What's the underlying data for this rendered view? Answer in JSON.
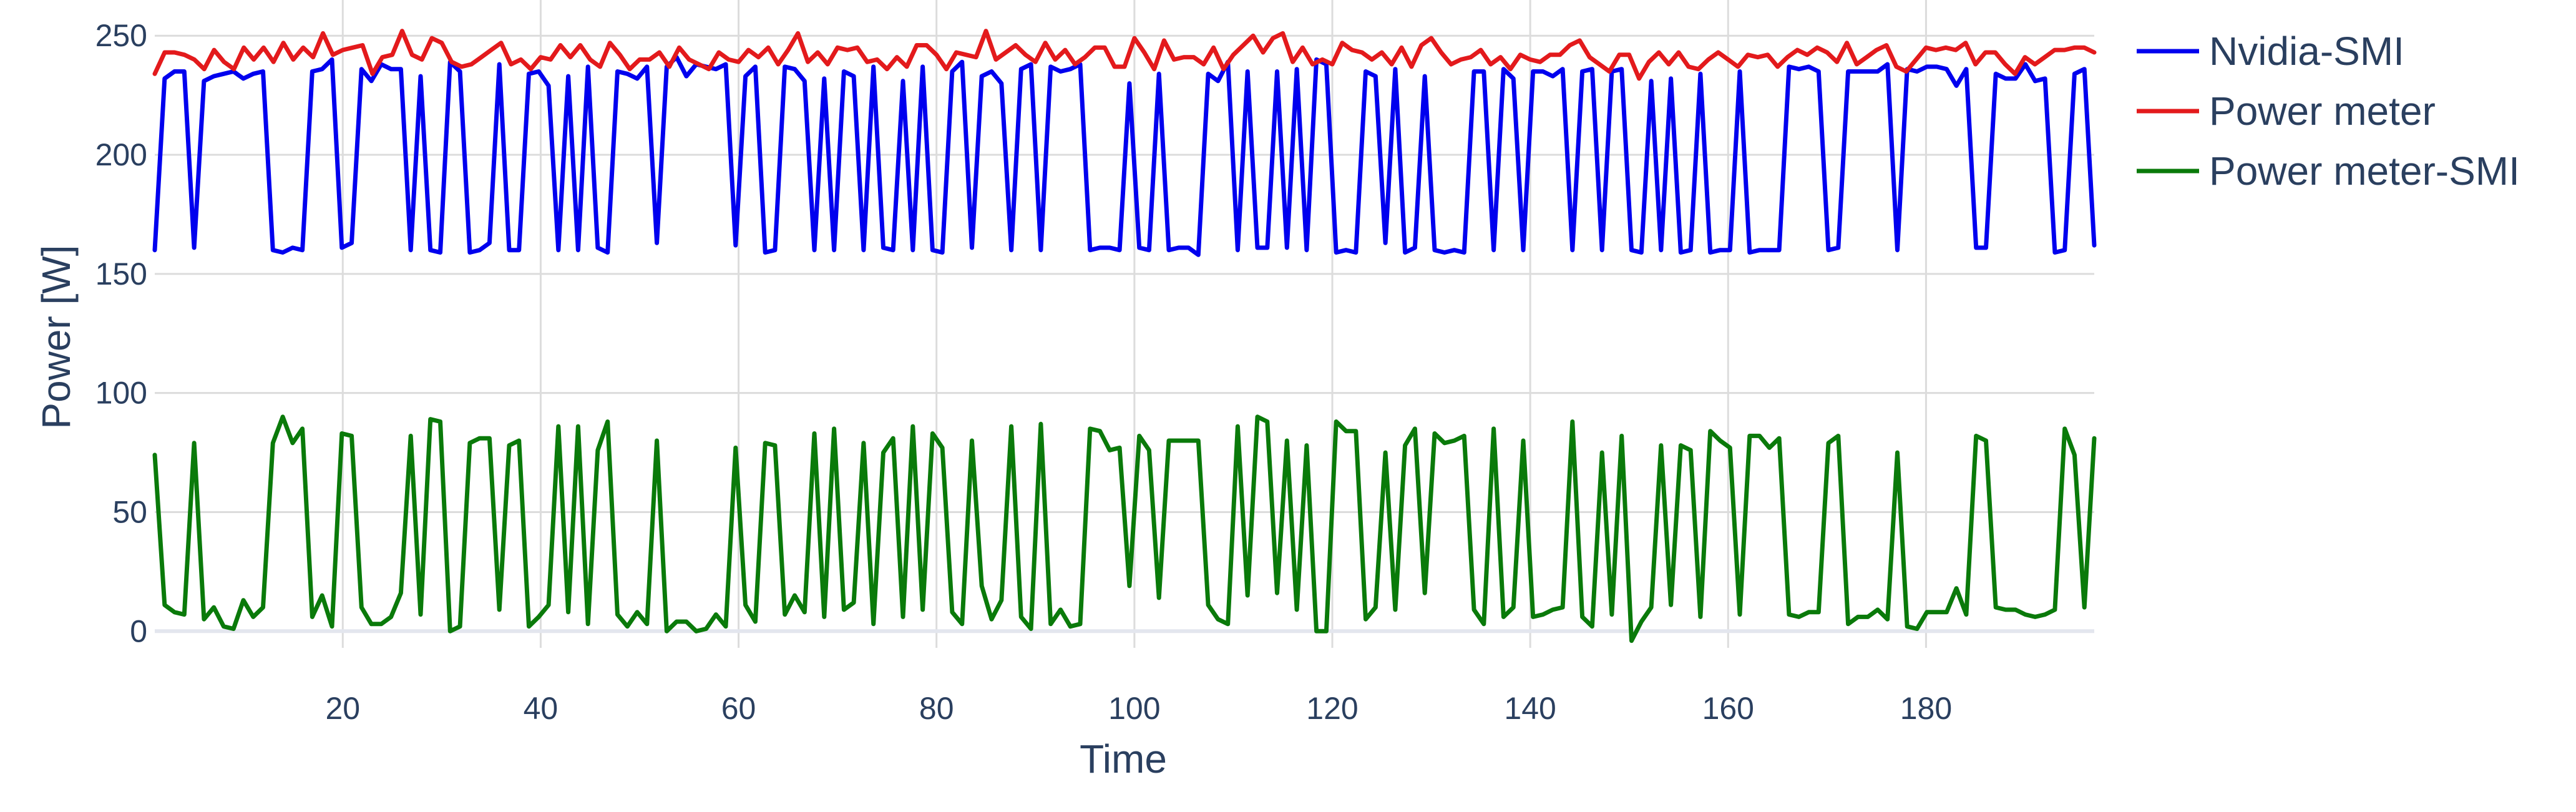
{
  "chart_data": {
    "type": "line",
    "title": "",
    "xlabel": "Time",
    "ylabel": "Power [W]",
    "xlim": [
      1,
      197
    ],
    "ylim": [
      -7,
      265
    ],
    "xticks": [
      20,
      40,
      60,
      80,
      100,
      120,
      140,
      160,
      180
    ],
    "yticks": [
      0,
      50,
      100,
      150,
      200,
      250
    ],
    "grid": true,
    "legend_position": "top-right outside",
    "series": [
      {
        "name": "Nvidia-SMI",
        "color": "#0000ee",
        "values": [
          160,
          232,
          235,
          235,
          161,
          231,
          233,
          234,
          235,
          232,
          234,
          235,
          160,
          159,
          161,
          160,
          235,
          236,
          240,
          161,
          163,
          236,
          231,
          238,
          236,
          236,
          160,
          233,
          160,
          159,
          239,
          235,
          159,
          160,
          163,
          238,
          160,
          160,
          234,
          235,
          229,
          160,
          233,
          160,
          237,
          161,
          159,
          235,
          234,
          232,
          237,
          163,
          237,
          241,
          233,
          238,
          237,
          236,
          238,
          162,
          233,
          237,
          159,
          160,
          237,
          236,
          231,
          160,
          232,
          160,
          235,
          233,
          160,
          237,
          161,
          160,
          231,
          160,
          237,
          160,
          159,
          235,
          239,
          161,
          233,
          235,
          230,
          160,
          236,
          238,
          160,
          237,
          235,
          236,
          238,
          160,
          161,
          161,
          160,
          230,
          161,
          160,
          234,
          160,
          161,
          161,
          158,
          234,
          231,
          239,
          160,
          235,
          161,
          161,
          235,
          161,
          236,
          160,
          240,
          238,
          159,
          160,
          159,
          235,
          233,
          163,
          236,
          159,
          161,
          233,
          160,
          159,
          160,
          159,
          235,
          235,
          160,
          236,
          232,
          160,
          235,
          235,
          233,
          236,
          160,
          235,
          236,
          160,
          235,
          236,
          160,
          159,
          231,
          160,
          232,
          159,
          160,
          234,
          159,
          160,
          160,
          235,
          159,
          160,
          160,
          160,
          237,
          236,
          237,
          235,
          160,
          161,
          235,
          235,
          235,
          235,
          238,
          160,
          236,
          235,
          237,
          237,
          236,
          229,
          236,
          161,
          161,
          234,
          232,
          232,
          238,
          231,
          232,
          159,
          160,
          234,
          236,
          162
        ]
      },
      {
        "name": "Power meter",
        "color": "#e31a1c",
        "values": [
          234,
          243,
          243,
          242,
          240,
          236,
          244,
          239,
          236,
          245,
          240,
          245,
          239,
          247,
          240,
          245,
          241,
          251,
          242,
          244,
          245,
          246,
          234,
          241,
          242,
          252,
          242,
          240,
          249,
          247,
          239,
          237,
          238,
          241,
          244,
          247,
          238,
          240,
          236,
          241,
          240,
          246,
          241,
          246,
          240,
          237,
          247,
          242,
          236,
          240,
          240,
          243,
          237,
          245,
          240,
          238,
          236,
          243,
          240,
          239,
          244,
          241,
          245,
          238,
          244,
          251,
          239,
          243,
          238,
          245,
          244,
          245,
          239,
          240,
          236,
          241,
          237,
          246,
          246,
          242,
          236,
          243,
          242,
          241,
          252,
          240,
          243,
          246,
          242,
          239,
          247,
          240,
          244,
          238,
          241,
          245,
          245,
          237,
          237,
          249,
          243,
          236,
          248,
          240,
          241,
          241,
          238,
          245,
          236,
          242,
          246,
          250,
          243,
          249,
          251,
          239,
          245,
          238,
          240,
          238,
          247,
          244,
          243,
          240,
          243,
          238,
          245,
          237,
          246,
          249,
          243,
          238,
          240,
          241,
          244,
          238,
          241,
          236,
          242,
          240,
          239,
          242,
          242,
          246,
          248,
          241,
          238,
          235,
          242,
          242,
          232,
          239,
          243,
          238,
          243,
          237,
          236,
          240,
          243,
          240,
          237,
          242,
          241,
          242,
          237,
          241,
          244,
          242,
          245,
          243,
          239,
          247,
          238,
          241,
          244,
          246,
          237,
          235,
          240,
          245,
          244,
          245,
          244,
          247,
          238,
          243,
          243,
          238,
          234,
          241,
          238,
          241,
          244,
          244,
          245,
          245,
          243
        ]
      },
      {
        "name": "Power meter-SMI",
        "color": "#0a7a0a",
        "values": [
          74,
          11,
          8,
          7,
          79,
          5,
          10,
          2,
          1,
          13,
          6,
          10,
          79,
          90,
          79,
          85,
          6,
          15,
          2,
          83,
          82,
          10,
          3,
          3,
          6,
          16,
          82,
          7,
          89,
          88,
          0,
          2,
          79,
          81,
          81,
          9,
          78,
          80,
          2,
          6,
          11,
          86,
          8,
          86,
          3,
          76,
          88,
          7,
          2,
          8,
          3,
          80,
          0,
          4,
          4,
          0,
          1,
          7,
          2,
          77,
          11,
          4,
          79,
          78,
          7,
          15,
          8,
          83,
          6,
          85,
          9,
          12,
          79,
          3,
          75,
          81,
          6,
          86,
          9,
          83,
          77,
          8,
          3,
          80,
          19,
          5,
          13,
          86,
          6,
          1,
          87,
          3,
          9,
          2,
          3,
          85,
          84,
          76,
          77,
          19,
          82,
          76,
          14,
          80,
          80,
          80,
          80,
          11,
          5,
          3,
          86,
          15,
          90,
          88,
          16,
          80,
          9,
          78,
          0,
          0,
          88,
          84,
          84,
          5,
          10,
          75,
          9,
          78,
          85,
          16,
          83,
          79,
          80,
          82,
          9,
          3,
          85,
          6,
          10,
          80,
          6,
          7,
          9,
          10,
          88,
          6,
          2,
          75,
          7,
          82,
          -4,
          4,
          10,
          78,
          11,
          78,
          76,
          6,
          84,
          80,
          77,
          7,
          82,
          82,
          77,
          81,
          7,
          6,
          8,
          8,
          79,
          82,
          3,
          6,
          6,
          9,
          5,
          75,
          2,
          1,
          8,
          8,
          8,
          18,
          7,
          82,
          80,
          10,
          9,
          9,
          7,
          6,
          7,
          9,
          85,
          74,
          10,
          81
        ]
      }
    ]
  }
}
